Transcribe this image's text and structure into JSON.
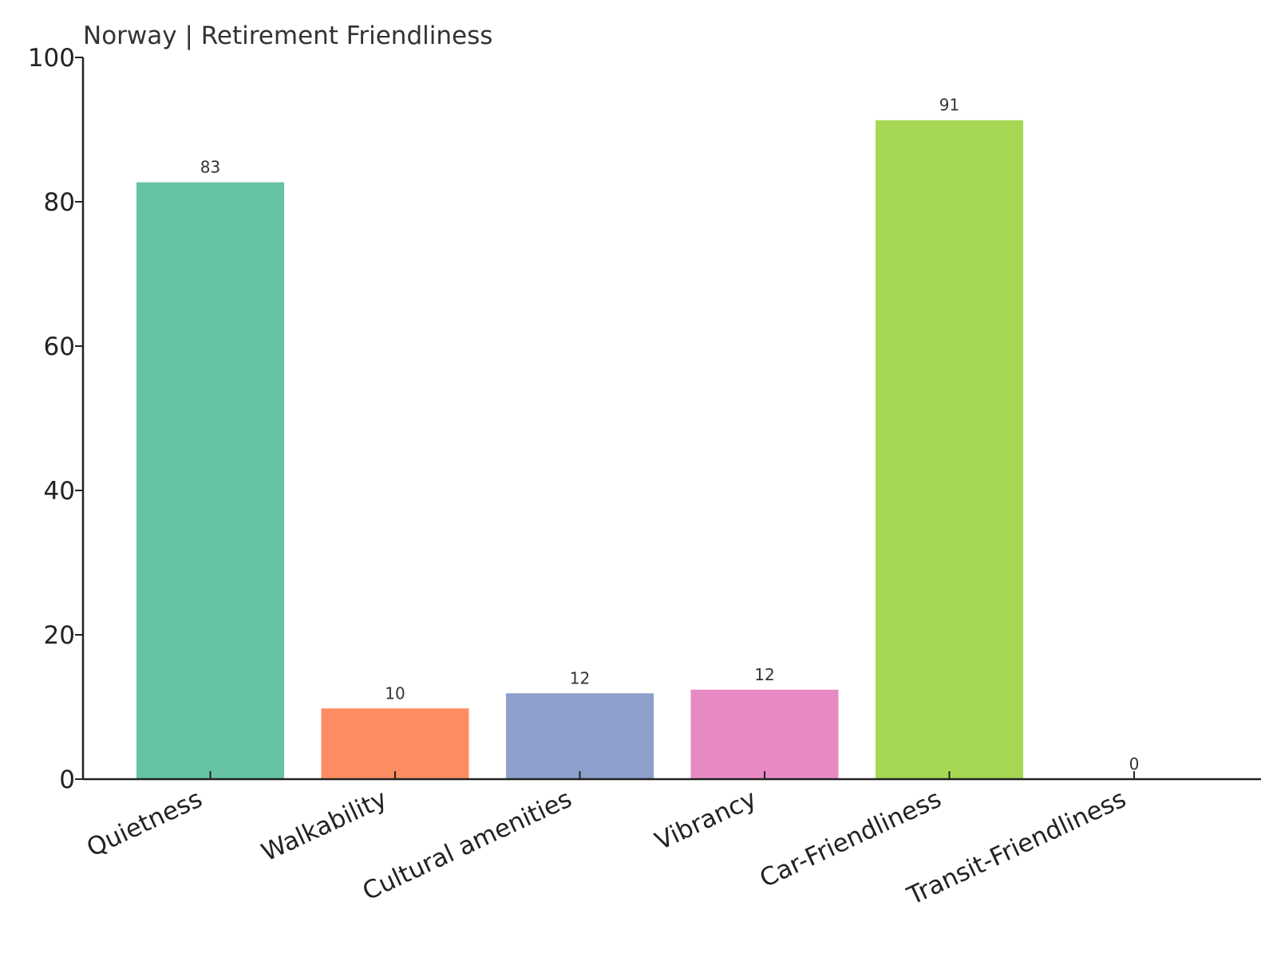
{
  "chart_data": {
    "type": "bar",
    "title": "Norway | Retirement Friendliness",
    "xlabel": "",
    "ylabel": "",
    "categories": [
      "Quietness",
      "Walkability",
      "Cultural amenities",
      "Vibrancy",
      "Car-Friendliness",
      "Transit-Friendliness"
    ],
    "values": [
      82.7,
      9.8,
      11.9,
      12.4,
      91.3,
      0
    ],
    "data_labels": [
      "83",
      "10",
      "12",
      "12",
      "91",
      "0"
    ],
    "colors": [
      "#66c2a5",
      "#fc8d62",
      "#8da0cb",
      "#e78ac3",
      "#a6d854",
      "#ffd92f"
    ],
    "ylim": [
      0,
      100
    ],
    "yticks": [
      0,
      20,
      40,
      60,
      80,
      100
    ],
    "ytick_labels": [
      "0",
      "20",
      "40",
      "60",
      "80",
      "100"
    ],
    "grid": false,
    "legend": "none"
  }
}
